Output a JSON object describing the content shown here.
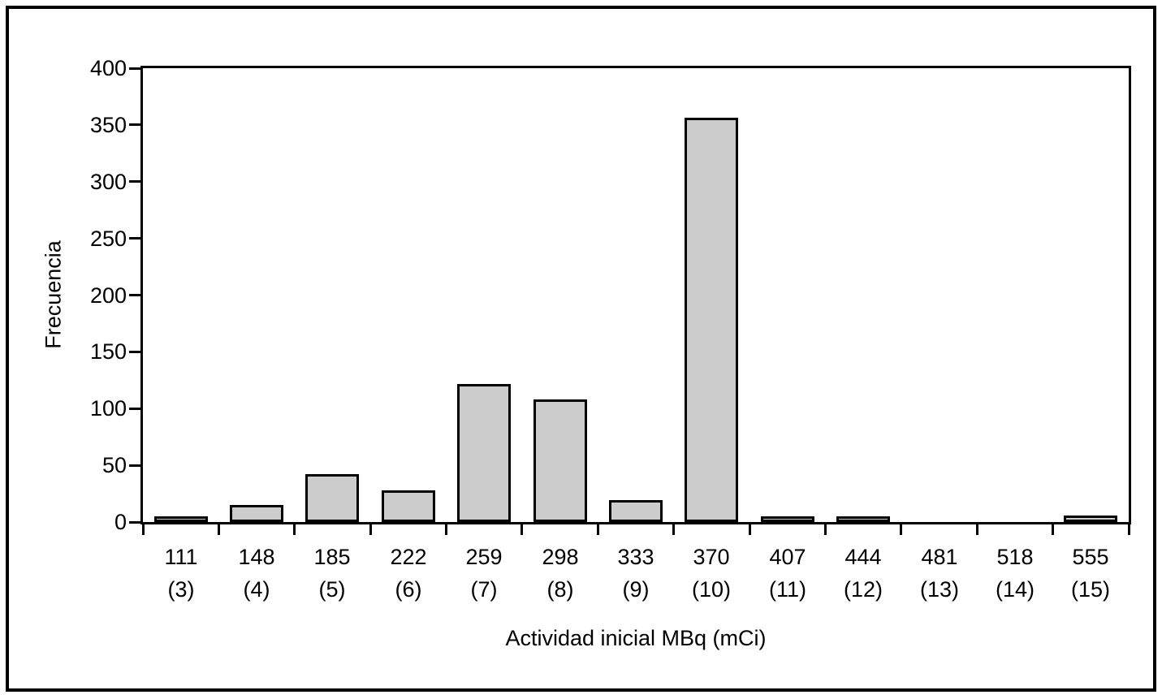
{
  "figure": {
    "background": "#ffffff",
    "border_color": "#000000"
  },
  "chart_data": {
    "type": "bar",
    "title": "",
    "xlabel": "Actividad inicial MBq (mCi)",
    "ylabel": "Frecuencia",
    "categories": [
      {
        "mbq": "111",
        "mci": "(3)"
      },
      {
        "mbq": "148",
        "mci": "(4)"
      },
      {
        "mbq": "185",
        "mci": "(5)"
      },
      {
        "mbq": "222",
        "mci": "(6)"
      },
      {
        "mbq": "259",
        "mci": "(7)"
      },
      {
        "mbq": "298",
        "mci": "(8)"
      },
      {
        "mbq": "333",
        "mci": "(9)"
      },
      {
        "mbq": "370",
        "mci": "(10)"
      },
      {
        "mbq": "407",
        "mci": "(11)"
      },
      {
        "mbq": "444",
        "mci": "(12)"
      },
      {
        "mbq": "481",
        "mci": "(13)"
      },
      {
        "mbq": "518",
        "mci": "(14)"
      },
      {
        "mbq": "555",
        "mci": "(15)"
      }
    ],
    "values": [
      5,
      15,
      42,
      28,
      122,
      108,
      19,
      356,
      5,
      5,
      0,
      0,
      6
    ],
    "yticks": [
      0,
      50,
      100,
      150,
      200,
      250,
      300,
      350,
      400
    ],
    "ylim": [
      0,
      400
    ],
    "bar_fill": "#cccccc",
    "bar_border": "#000000",
    "grid": false,
    "legend": false
  }
}
